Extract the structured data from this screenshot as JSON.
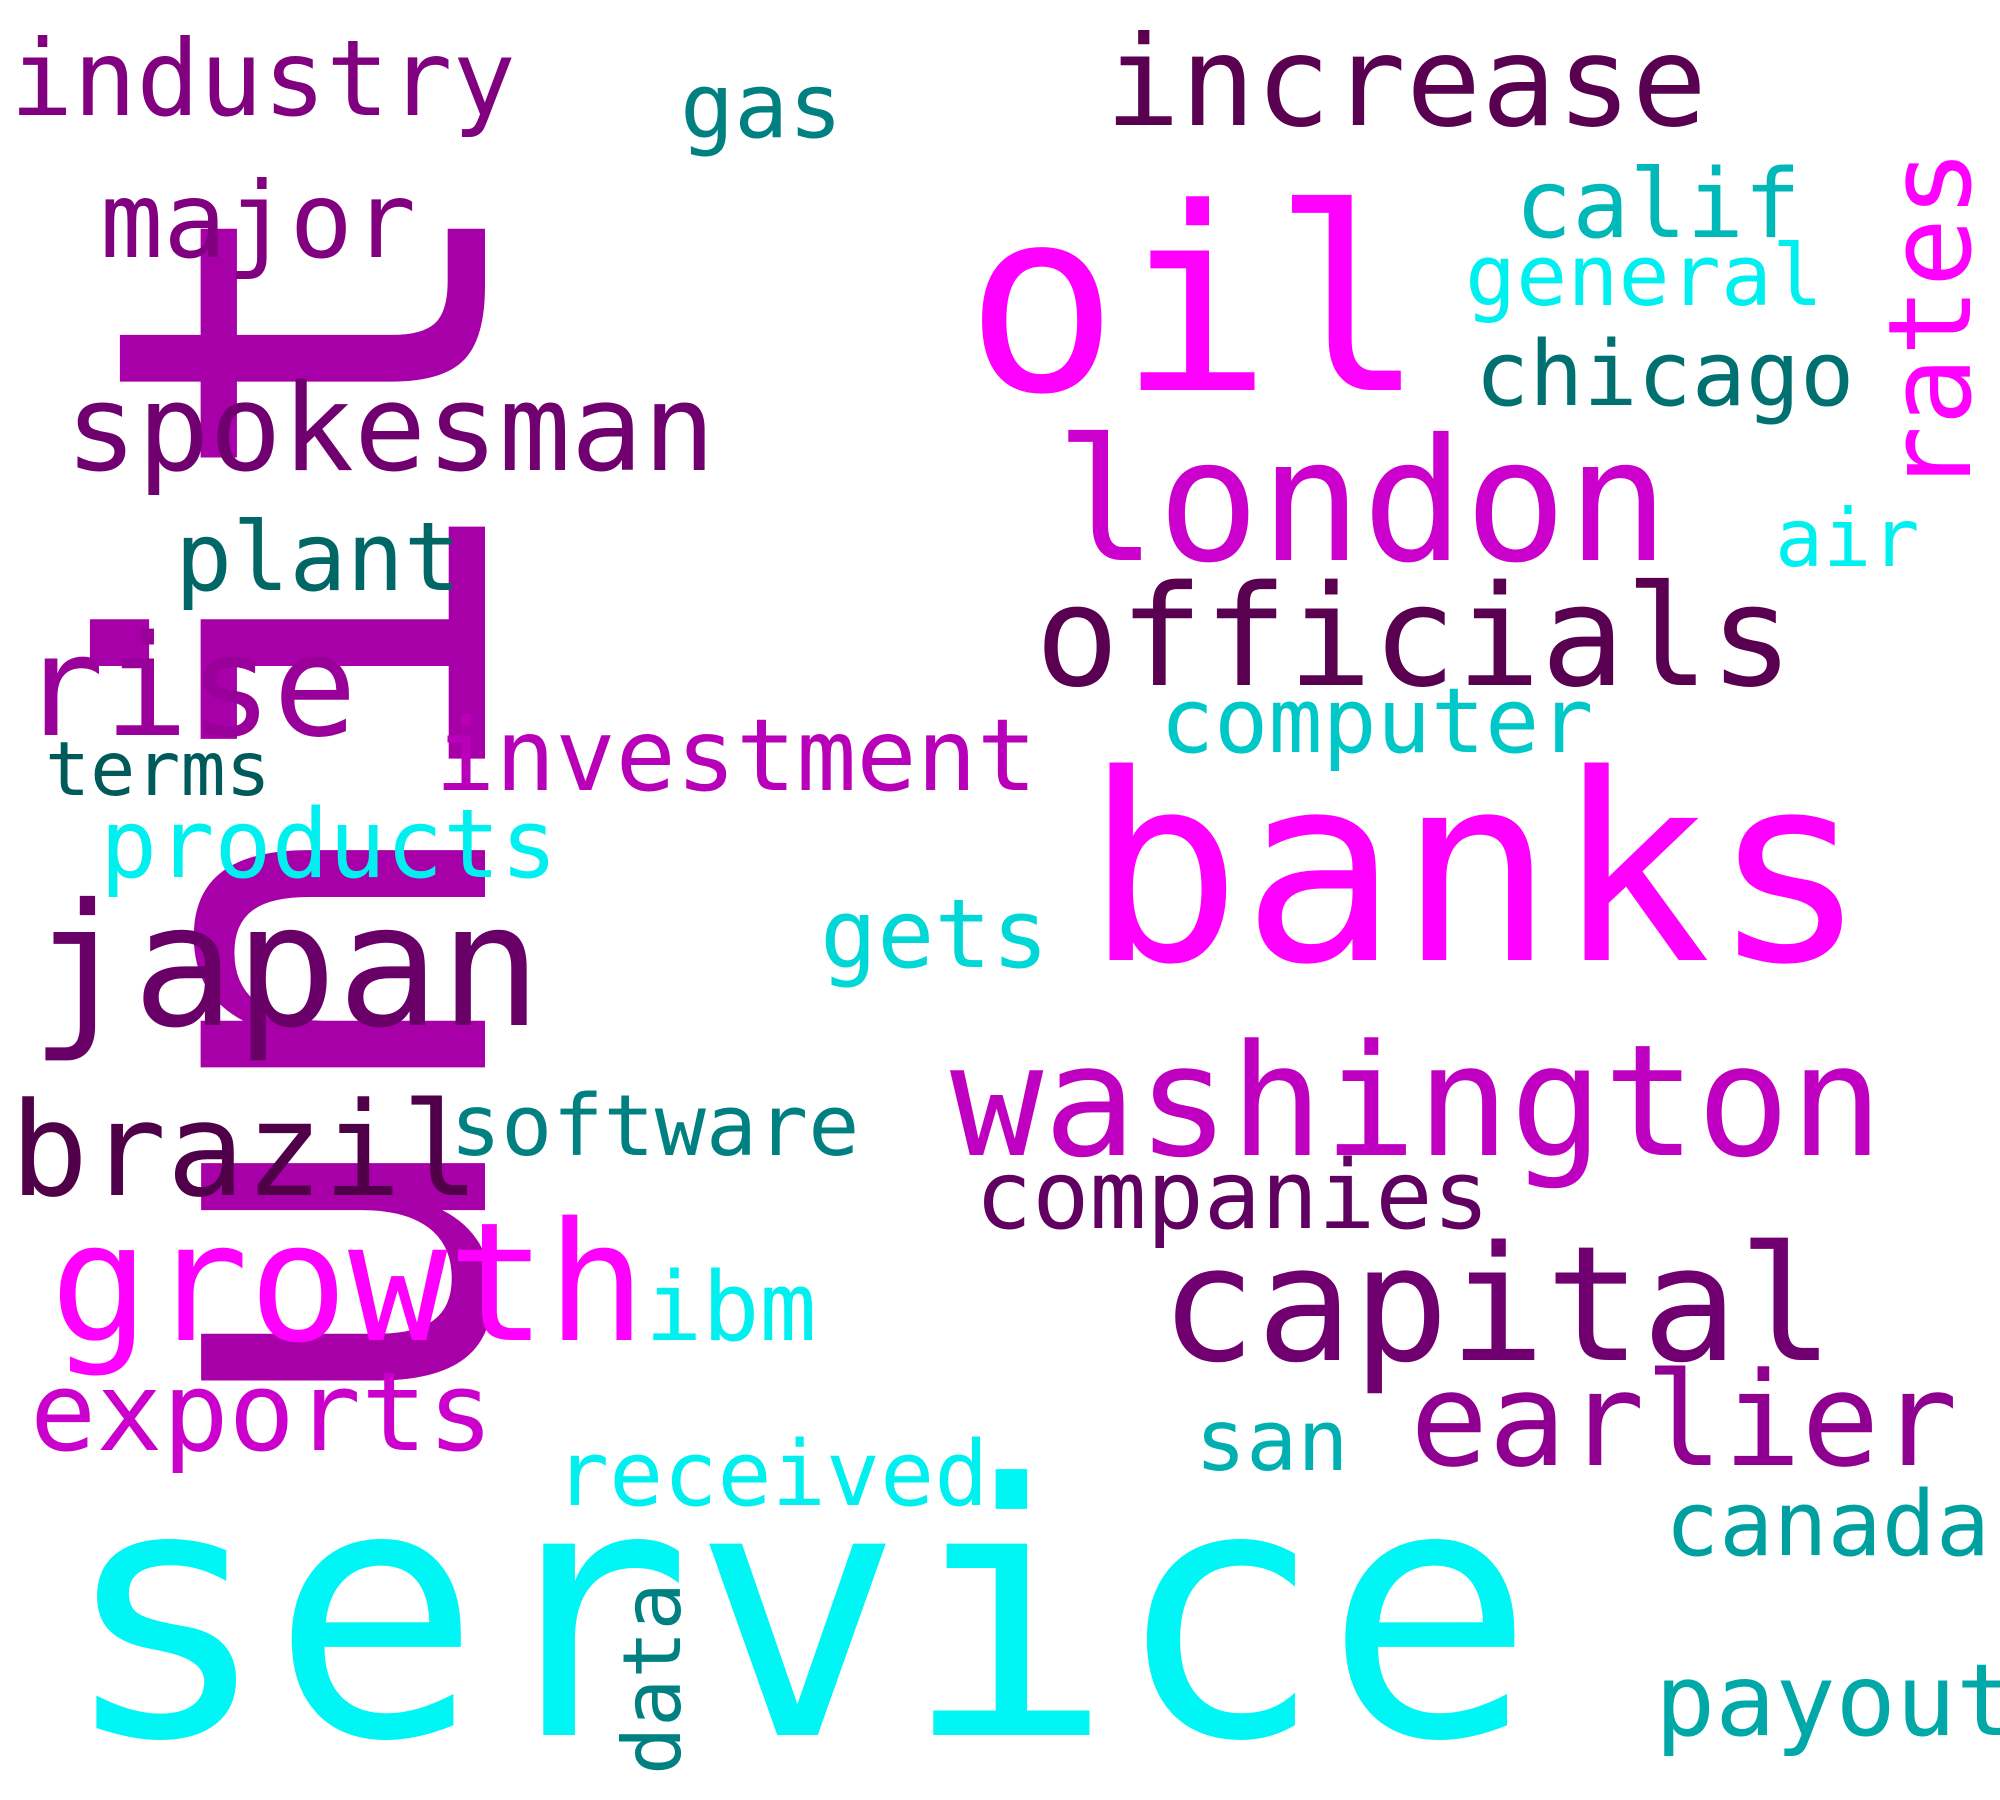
{
  "words": [
    {
      "text": "unit",
      "color": "#a800a8"
    },
    {
      "text": "service",
      "color": "#00f5f5"
    },
    {
      "text": "banks",
      "color": "#ff00ff"
    },
    {
      "text": "oil",
      "color": "#ff00ff"
    },
    {
      "text": "increase",
      "color": "#5a0050"
    },
    {
      "text": "rates",
      "color": "#ff00ff"
    },
    {
      "text": "industry",
      "color": "#800080"
    },
    {
      "text": "gas",
      "color": "#008080"
    },
    {
      "text": "major",
      "color": "#800080"
    },
    {
      "text": "calif",
      "color": "#00b8b8"
    },
    {
      "text": "general",
      "color": "#00f0f0"
    },
    {
      "text": "spokesman",
      "color": "#700070"
    },
    {
      "text": "chicago",
      "color": "#007070"
    },
    {
      "text": "london",
      "color": "#cc00cc"
    },
    {
      "text": "air",
      "color": "#00f0f0"
    },
    {
      "text": "plant",
      "color": "#006666"
    },
    {
      "text": "officials",
      "color": "#5a0050"
    },
    {
      "text": "rise",
      "color": "#990099"
    },
    {
      "text": "computer",
      "color": "#00c8c8"
    },
    {
      "text": "investment",
      "color": "#b800b8"
    },
    {
      "text": "terms",
      "color": "#005a5a"
    },
    {
      "text": "products",
      "color": "#00f0f0"
    },
    {
      "text": "gets",
      "color": "#00d8d8"
    },
    {
      "text": "japan",
      "color": "#680068"
    },
    {
      "text": "washington",
      "color": "#c000c0"
    },
    {
      "text": "brazil",
      "color": "#500048"
    },
    {
      "text": "software",
      "color": "#008080"
    },
    {
      "text": "companies",
      "color": "#600060"
    },
    {
      "text": "growth",
      "color": "#ff00ff"
    },
    {
      "text": "capital",
      "color": "#700070"
    },
    {
      "text": "ibm",
      "color": "#00f0f0"
    },
    {
      "text": "exports",
      "color": "#cc00cc"
    },
    {
      "text": "earlier",
      "color": "#900090"
    },
    {
      "text": "san",
      "color": "#00b0b0"
    },
    {
      "text": "received",
      "color": "#00f0f0"
    },
    {
      "text": "canada",
      "color": "#00a0a0"
    },
    {
      "text": "data",
      "color": "#008080"
    },
    {
      "text": "payout",
      "color": "#00a8a8"
    }
  ]
}
